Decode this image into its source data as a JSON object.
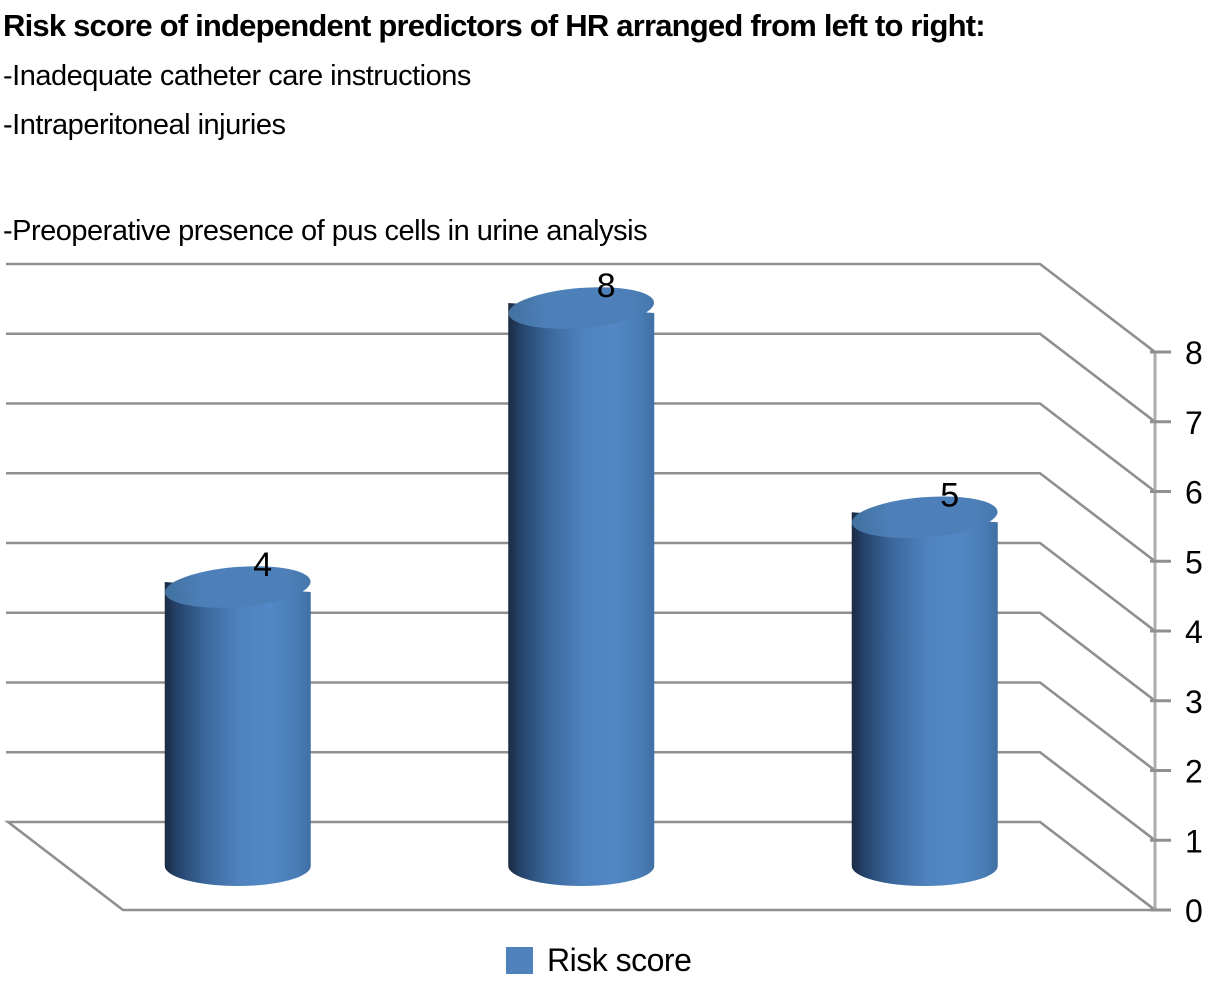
{
  "header": {
    "title": "Risk score of independent predictors of HR arranged from left to right:",
    "predictors": [
      "-Inadequate catheter care instructions",
      "-Intraperitoneal injuries",
      "-Preoperative presence of pus cells in urine analysis"
    ]
  },
  "chart_data": {
    "type": "bar",
    "style": "3d-cylinder",
    "title": "Risk score of independent predictors of HR arranged from left to right:",
    "categories": [
      "Inadequate catheter care instructions",
      "Intraperitoneal injuries",
      "Preoperative presence of pus cells in urine analysis"
    ],
    "series": [
      {
        "name": "Risk score",
        "values": [
          4,
          8,
          5
        ]
      }
    ],
    "data_labels": [
      "4",
      "8",
      "5"
    ],
    "y_ticks": [
      "0",
      "1",
      "2",
      "3",
      "4",
      "5",
      "6",
      "7",
      "8"
    ],
    "ylim": [
      0,
      8
    ],
    "xlabel": "",
    "ylabel": "",
    "value_axis_side": "right",
    "grid": true,
    "legend_position": "bottom"
  },
  "legend": {
    "label": "Risk score"
  },
  "colors": {
    "series_fill": "#4f81bd",
    "cylinder_dark_edge": "#1c2c44",
    "cylinder_mid": "#38659a",
    "cylinder_bright": "#5288c5",
    "cylinder_right": "#3f70a4",
    "cylinder_top_face": "#4d7fb8",
    "gridline": "#8f8f8f",
    "axis_line": "#acacac",
    "text": "#000000"
  }
}
